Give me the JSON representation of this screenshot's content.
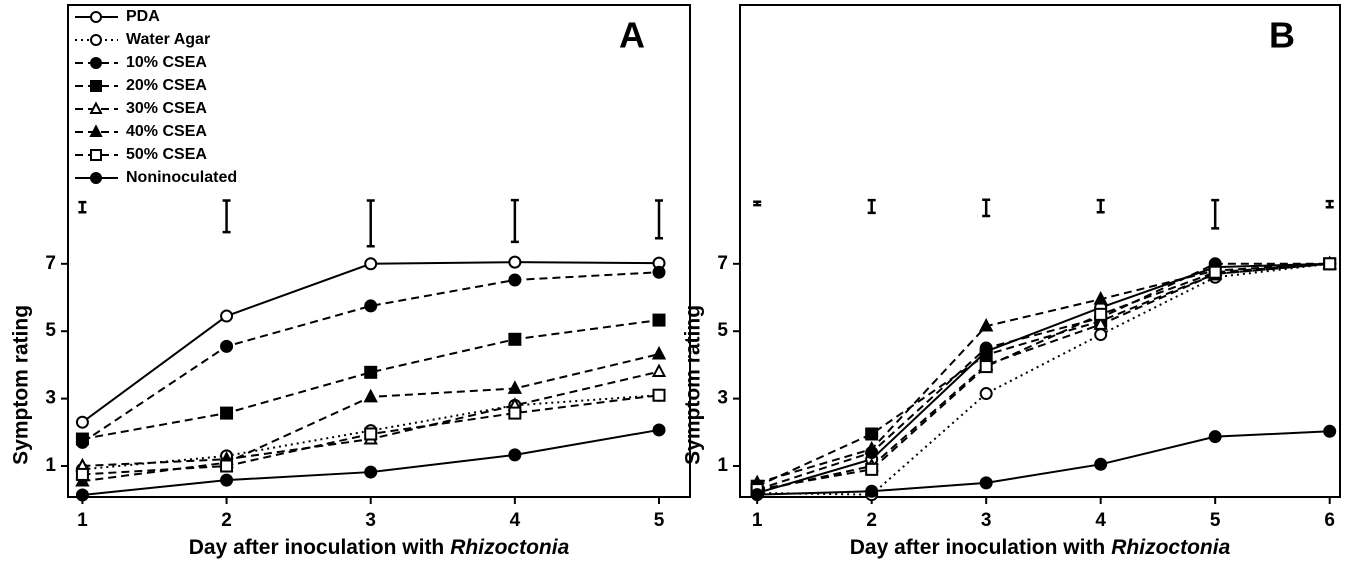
{
  "chart_data": [
    {
      "type": "line",
      "panel_label": "A",
      "ylabel": "Symptom rating",
      "xlabel": [
        "Day after inoculation with",
        "Rhizoctonia"
      ],
      "x": [
        1,
        2,
        3,
        4,
        5
      ],
      "xlim": [
        0.9,
        5.215
      ],
      "xticks": [
        1,
        2,
        3,
        4,
        5
      ],
      "ylim": [
        0.08,
        14.68
      ],
      "yticks": [
        1,
        3,
        5,
        7
      ],
      "legend": "upper left",
      "error_bars": {
        "values": [
          8.68,
          8.41,
          8.2,
          8.27,
          8.32
        ],
        "errors": [
          0.15,
          0.47,
          0.68,
          0.62,
          0.56
        ]
      },
      "series": [
        {
          "name": "PDA",
          "color": "#000",
          "line": "solid",
          "marker": "circle",
          "filled": false,
          "values": [
            2.3,
            5.45,
            7.0,
            7.05,
            7.02
          ]
        },
        {
          "name": "Water Agar",
          "color": "#000",
          "line": "dotted",
          "marker": "circle",
          "filled": false,
          "values": [
            0.9,
            1.3,
            2.05,
            2.8,
            3.1
          ]
        },
        {
          "name": "10% CSEA",
          "color": "#000",
          "line": "dashed",
          "marker": "circle",
          "filled": true,
          "values": [
            1.7,
            4.55,
            5.75,
            6.52,
            6.75
          ]
        },
        {
          "name": "20% CSEA",
          "color": "#000",
          "line": "dashed",
          "marker": "square",
          "filled": true,
          "values": [
            1.8,
            2.57,
            3.78,
            4.76,
            5.33
          ]
        },
        {
          "name": "30% CSEA",
          "color": "#000",
          "line": "dashed",
          "marker": "triangle",
          "filled": false,
          "values": [
            1.0,
            1.2,
            1.8,
            2.8,
            3.8
          ]
        },
        {
          "name": "40% CSEA",
          "color": "#000",
          "line": "dashed",
          "marker": "triangle",
          "filled": true,
          "values": [
            0.55,
            1.1,
            3.05,
            3.3,
            4.32
          ]
        },
        {
          "name": "50% CSEA",
          "color": "#000",
          "line": "dashed",
          "marker": "square",
          "filled": false,
          "values": [
            0.75,
            1.0,
            1.95,
            2.57,
            3.1
          ]
        },
        {
          "name": "Noninoculated",
          "color": "#000",
          "line": "solid",
          "marker": "circle",
          "filled": true,
          "values": [
            0.14,
            0.58,
            0.82,
            1.33,
            2.07
          ]
        }
      ]
    },
    {
      "type": "line",
      "panel_label": "B",
      "ylabel": "Symptom rating",
      "xlabel": [
        "Day after inoculation with",
        "Rhizoctonia"
      ],
      "x": [
        1,
        2,
        3,
        4,
        5,
        6
      ],
      "xlim": [
        0.85,
        6.09
      ],
      "xticks": [
        1,
        2,
        3,
        4,
        5,
        6
      ],
      "ylim": [
        0.08,
        14.68
      ],
      "yticks": [
        1,
        3,
        5,
        7
      ],
      "error_bars": {
        "values": [
          8.79,
          8.7,
          8.66,
          8.71,
          8.47,
          8.77
        ],
        "errors": [
          0.05,
          0.19,
          0.24,
          0.18,
          0.42,
          0.09
        ]
      },
      "series": [
        {
          "color": "#000",
          "line": "solid",
          "marker": "circle",
          "filled": false,
          "values": [
            0.2,
            1.2,
            4.4,
            5.7,
            6.9,
            7.0
          ]
        },
        {
          "color": "#000",
          "line": "dotted",
          "marker": "circle",
          "filled": false,
          "values": [
            0.2,
            0.15,
            3.15,
            4.9,
            6.6,
            7.0
          ]
        },
        {
          "color": "#000",
          "line": "dashed",
          "marker": "circle",
          "filled": true,
          "values": [
            0.3,
            1.4,
            4.5,
            5.4,
            7.0,
            7.0
          ]
        },
        {
          "color": "#000",
          "line": "dashed",
          "marker": "square",
          "filled": true,
          "values": [
            0.4,
            1.95,
            4.3,
            5.3,
            6.7,
            7.0
          ]
        },
        {
          "color": "#000",
          "line": "dashed",
          "marker": "triangle",
          "filled": false,
          "values": [
            0.25,
            1.0,
            4.0,
            5.2,
            6.7,
            7.0
          ]
        },
        {
          "color": "#000",
          "line": "dashed",
          "marker": "triangle",
          "filled": true,
          "values": [
            0.5,
            1.5,
            5.15,
            5.95,
            6.8,
            7.0
          ]
        },
        {
          "color": "#000",
          "line": "dashed",
          "marker": "square",
          "filled": false,
          "values": [
            0.3,
            0.9,
            3.95,
            5.5,
            6.75,
            7.0
          ]
        },
        {
          "color": "#000",
          "line": "solid",
          "marker": "circle",
          "filled": true,
          "values": [
            0.15,
            0.25,
            0.5,
            1.05,
            1.87,
            2.03
          ]
        }
      ]
    }
  ]
}
